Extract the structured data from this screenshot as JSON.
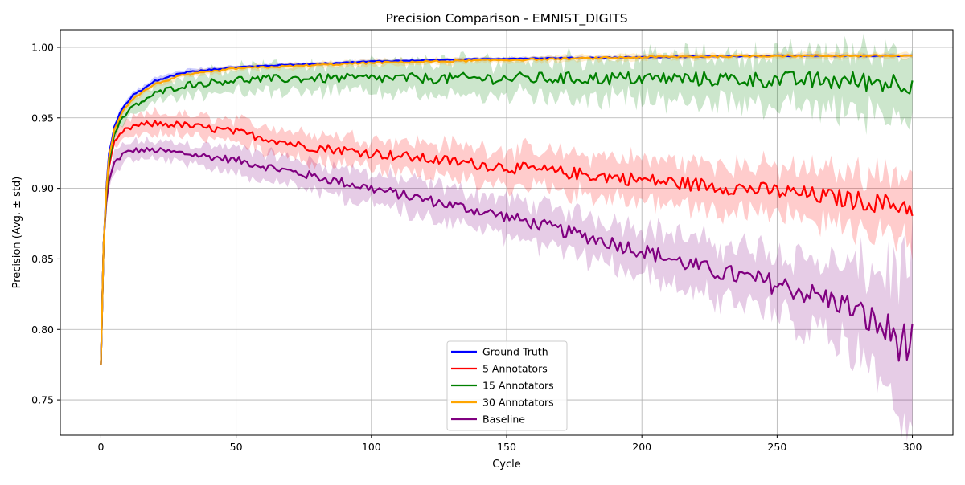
{
  "chart_data": {
    "type": "line",
    "title": "Precision Comparison - EMNIST_DIGITS",
    "xlabel": "Cycle",
    "ylabel": "Precision (Avg. ± std)",
    "xlim": [
      -15,
      315
    ],
    "ylim": [
      0.725,
      1.0125
    ],
    "x_ticks": [
      0,
      50,
      100,
      150,
      200,
      250,
      300
    ],
    "y_ticks": [
      0.75,
      0.8,
      0.85,
      0.9,
      0.95,
      1.0
    ],
    "x_tick_labels": [
      "0",
      "50",
      "100",
      "150",
      "200",
      "250",
      "300"
    ],
    "y_tick_labels": [
      "0.75",
      "0.80",
      "0.85",
      "0.90",
      "0.95",
      "1.00"
    ],
    "grid": true,
    "legend_position": "lower-center",
    "series": [
      {
        "name": "Ground Truth",
        "color": "#0000ff",
        "x": [
          0,
          1,
          2,
          3,
          5,
          8,
          12,
          20,
          30,
          50,
          75,
          100,
          150,
          200,
          250,
          300
        ],
        "mean": [
          0.775,
          0.86,
          0.9,
          0.925,
          0.944,
          0.957,
          0.966,
          0.976,
          0.982,
          0.986,
          0.988,
          0.99,
          0.992,
          0.993,
          0.994,
          0.994
        ],
        "std": [
          0.006,
          0.004,
          0.003,
          0.003,
          0.002,
          0.002,
          0.002,
          0.002,
          0.002,
          0.001,
          0.001,
          0.001,
          0.001,
          0.001,
          0.001,
          0.001
        ]
      },
      {
        "name": "5 Annotators",
        "color": "#ff0000",
        "x": [
          0,
          1,
          2,
          3,
          5,
          8,
          12,
          20,
          30,
          50,
          75,
          100,
          150,
          200,
          250,
          300
        ],
        "mean": [
          0.775,
          0.86,
          0.895,
          0.915,
          0.932,
          0.94,
          0.944,
          0.946,
          0.945,
          0.94,
          0.93,
          0.925,
          0.915,
          0.906,
          0.898,
          0.887
        ],
        "std": [
          0.008,
          0.006,
          0.005,
          0.005,
          0.005,
          0.005,
          0.006,
          0.007,
          0.007,
          0.008,
          0.009,
          0.01,
          0.012,
          0.014,
          0.016,
          0.022
        ]
      },
      {
        "name": "15 Annotators",
        "color": "#008000",
        "x": [
          0,
          1,
          2,
          3,
          5,
          8,
          12,
          20,
          30,
          50,
          75,
          100,
          150,
          200,
          250,
          300
        ],
        "mean": [
          0.775,
          0.86,
          0.895,
          0.918,
          0.938,
          0.95,
          0.958,
          0.967,
          0.973,
          0.977,
          0.978,
          0.978,
          0.978,
          0.978,
          0.977,
          0.975
        ],
        "std": [
          0.006,
          0.004,
          0.004,
          0.004,
          0.004,
          0.005,
          0.005,
          0.006,
          0.007,
          0.008,
          0.009,
          0.01,
          0.012,
          0.014,
          0.017,
          0.023
        ]
      },
      {
        "name": "30 Annotators",
        "color": "#ffa500",
        "x": [
          0,
          1,
          2,
          3,
          5,
          8,
          12,
          20,
          30,
          50,
          75,
          100,
          150,
          200,
          250,
          300
        ],
        "mean": [
          0.775,
          0.86,
          0.898,
          0.922,
          0.942,
          0.955,
          0.964,
          0.974,
          0.98,
          0.985,
          0.987,
          0.989,
          0.991,
          0.993,
          0.994,
          0.994
        ],
        "std": [
          0.006,
          0.004,
          0.003,
          0.003,
          0.002,
          0.002,
          0.002,
          0.002,
          0.002,
          0.002,
          0.002,
          0.002,
          0.002,
          0.002,
          0.002,
          0.002
        ]
      },
      {
        "name": "Baseline",
        "color": "#800080",
        "x": [
          0,
          1,
          2,
          3,
          5,
          8,
          12,
          20,
          30,
          50,
          75,
          100,
          125,
          150,
          175,
          200,
          225,
          250,
          275,
          300
        ],
        "mean": [
          0.775,
          0.86,
          0.89,
          0.905,
          0.918,
          0.924,
          0.927,
          0.927,
          0.925,
          0.92,
          0.91,
          0.9,
          0.89,
          0.88,
          0.868,
          0.856,
          0.842,
          0.832,
          0.818,
          0.787
        ],
        "std": [
          0.01,
          0.008,
          0.007,
          0.006,
          0.006,
          0.006,
          0.006,
          0.006,
          0.007,
          0.008,
          0.009,
          0.01,
          0.011,
          0.012,
          0.014,
          0.016,
          0.018,
          0.022,
          0.025,
          0.05
        ]
      }
    ]
  }
}
